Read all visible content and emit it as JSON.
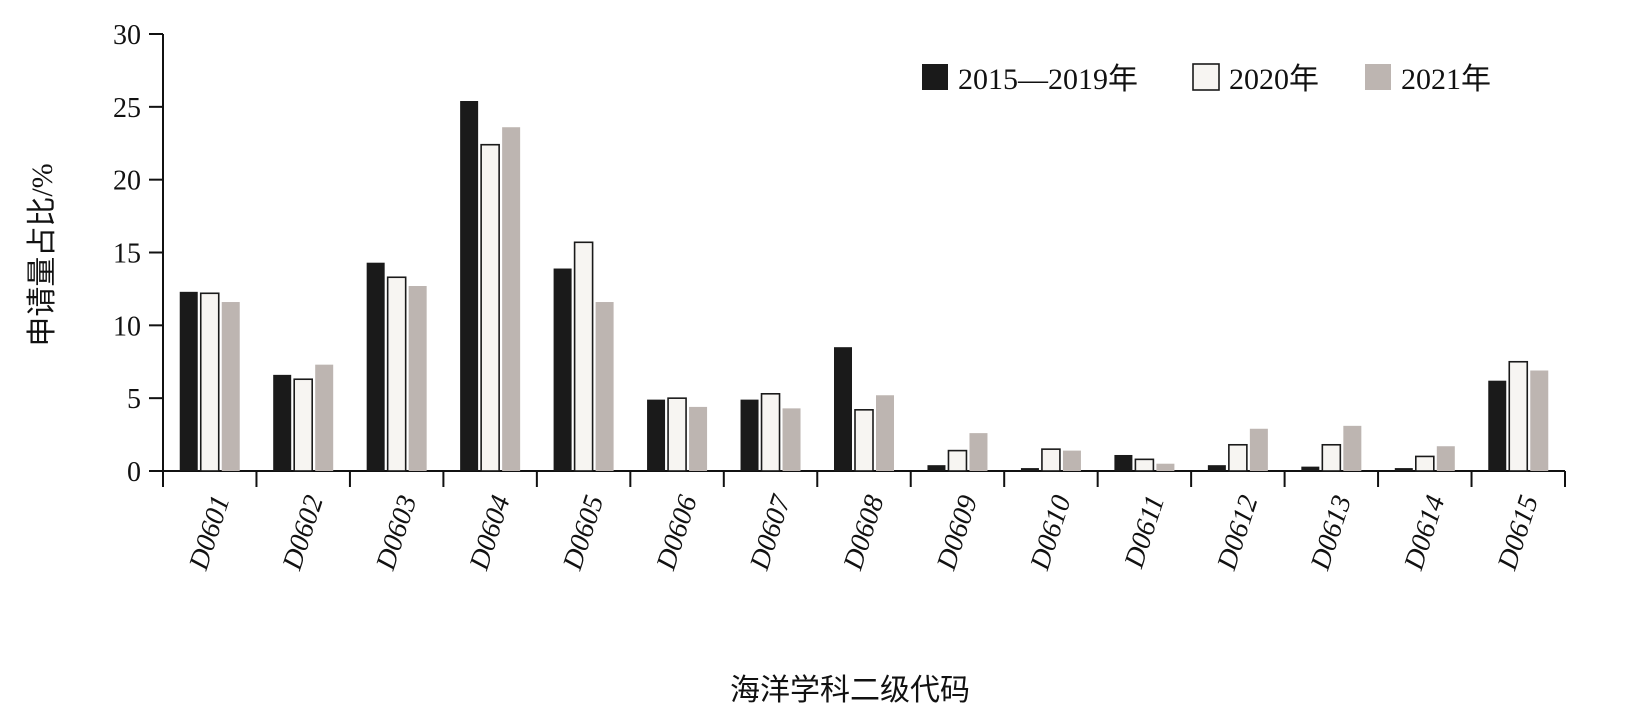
{
  "chart_data": {
    "type": "bar",
    "title": "",
    "xlabel": "海洋学科二级代码",
    "ylabel": "申请量占比/%",
    "ylim": [
      0,
      30
    ],
    "yticks": [
      0,
      5,
      10,
      15,
      20,
      25,
      30
    ],
    "grid": false,
    "legend_position": "top-right",
    "categories": [
      "D0601",
      "D0602",
      "D0603",
      "D0604",
      "D0605",
      "D0606",
      "D0607",
      "D0608",
      "D0609",
      "D0610",
      "D0611",
      "D0612",
      "D0613",
      "D0614",
      "D0615"
    ],
    "series": [
      {
        "name": "2015—2019年",
        "color": "#1a1a1a",
        "fill": "#1a1a1a",
        "values": [
          12.3,
          6.6,
          14.3,
          25.4,
          13.9,
          4.9,
          4.9,
          8.5,
          0.4,
          0.2,
          1.1,
          0.4,
          0.3,
          0.2,
          6.2
        ]
      },
      {
        "name": "2020年",
        "color": "#1a1a1a",
        "fill": "#f7f5f2",
        "values": [
          12.2,
          6.3,
          13.3,
          22.4,
          15.7,
          5.0,
          5.3,
          4.2,
          1.4,
          1.5,
          0.8,
          1.8,
          1.8,
          1.0,
          7.5
        ]
      },
      {
        "name": "2021年",
        "color": "#bdb5b1",
        "fill": "#bdb5b1",
        "values": [
          11.6,
          7.3,
          12.7,
          23.6,
          11.6,
          4.4,
          4.3,
          5.2,
          2.6,
          1.4,
          0.5,
          2.9,
          3.1,
          1.7,
          6.9
        ]
      }
    ]
  }
}
